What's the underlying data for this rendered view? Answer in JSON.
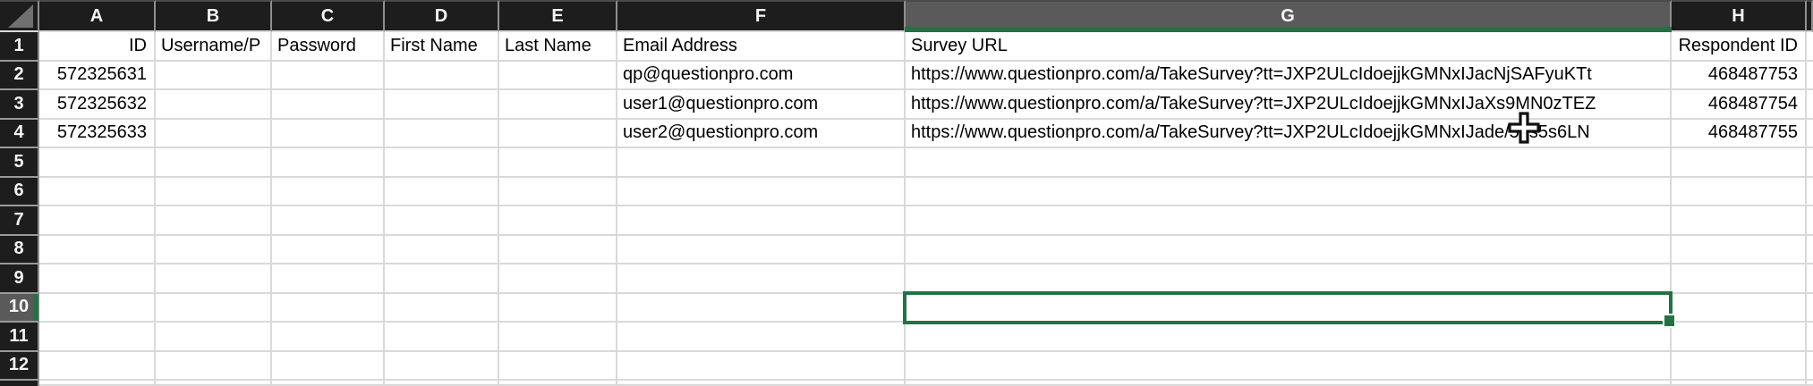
{
  "sheet": {
    "col_letters": [
      "A",
      "B",
      "C",
      "D",
      "E",
      "F",
      "G",
      "H"
    ],
    "rows": [
      {
        "n": "1",
        "cells": {
          "A": "ID",
          "B": "Username/P",
          "C": "Password",
          "D": "First Name",
          "E": "Last Name",
          "F": "Email Address",
          "G": "Survey URL",
          "H": "Respondent ID"
        }
      },
      {
        "n": "2",
        "cells": {
          "A": "572325631",
          "F": "qp@questionpro.com",
          "G": "https://www.questionpro.com/a/TakeSurvey?tt=JXP2ULcIdoejjkGMNxIJacNjSAFyuKTt",
          "H": "468487753"
        }
      },
      {
        "n": "3",
        "cells": {
          "A": "572325632",
          "F": "user1@questionpro.com",
          "G": "https://www.questionpro.com/a/TakeSurvey?tt=JXP2ULcIdoejjkGMNxIJaXs9MN0zTEZ",
          "H": "468487754"
        }
      },
      {
        "n": "4",
        "cells": {
          "A": "572325633",
          "F": "user2@questionpro.com",
          "G": "https://www.questionpro.com/a/TakeSurvey?tt=JXP2ULcIdoejjkGMNxIJade/5gs5s6LN",
          "H": "468487755"
        }
      },
      {
        "n": "5",
        "cells": {}
      },
      {
        "n": "6",
        "cells": {}
      },
      {
        "n": "7",
        "cells": {}
      },
      {
        "n": "8",
        "cells": {}
      },
      {
        "n": "9",
        "cells": {}
      },
      {
        "n": "10",
        "cells": {}
      },
      {
        "n": "11",
        "cells": {}
      },
      {
        "n": "12",
        "cells": {}
      }
    ],
    "selection": {
      "active_column": "G",
      "active_row": "10",
      "active_cell": "G10"
    },
    "align_right_columns": [
      "A",
      "H"
    ],
    "colors": {
      "accent_green": "#217346",
      "header_bg": "#1d1d1d",
      "selected_header_bg": "#5a5a5a",
      "gridline": "#d9d9d9",
      "corner_triangle": "#707070"
    }
  }
}
